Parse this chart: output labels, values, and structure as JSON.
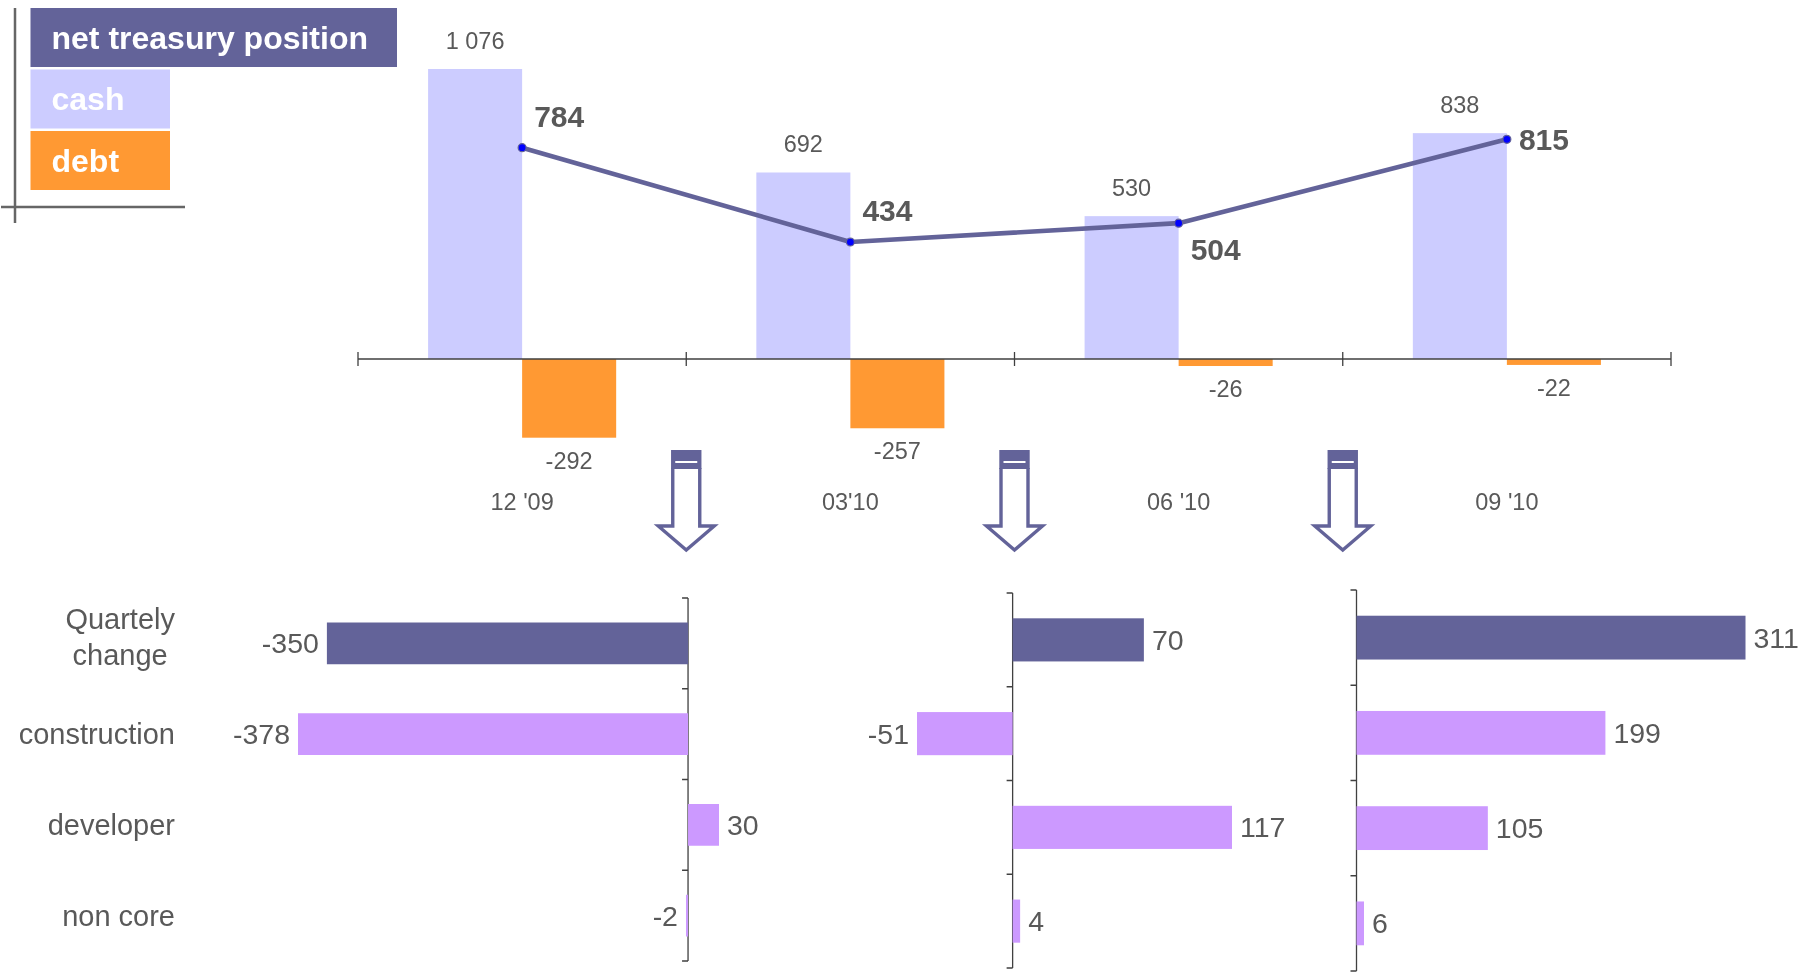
{
  "chart_data": [
    {
      "type": "bar",
      "categories": [
        "12 '09",
        "03'10",
        "06 '10",
        "09 '10"
      ],
      "series": [
        {
          "name": "net treasury position",
          "type": "line",
          "color": "#636399",
          "values": [
            784,
            434,
            504,
            815
          ]
        },
        {
          "name": "cash",
          "color": "#ccccff",
          "values": [
            1076,
            692,
            530,
            838
          ],
          "value_labels": [
            "1 076",
            "692",
            "530",
            "838"
          ]
        },
        {
          "name": "debt",
          "color": "#ff9933",
          "values": [
            -292,
            -257,
            -26,
            -22
          ]
        }
      ],
      "data_labels": true,
      "legend": "top left",
      "marker": "circle",
      "tick_labels": "x"
    },
    {
      "type": "bar",
      "orientation": "horizontal",
      "categories": [
        "Quartely change",
        "construction",
        "developer",
        "non core"
      ],
      "values": [
        -350,
        -378,
        30,
        -2
      ],
      "colors": [
        "#636399",
        "#cc99ff",
        "#cc99ff",
        "#cc99ff"
      ],
      "data_labels": true,
      "tick_labels": "y"
    },
    {
      "type": "bar",
      "orientation": "horizontal",
      "categories": [
        "Quartely change",
        "construction",
        "developer",
        "non core"
      ],
      "values": [
        70,
        -51,
        117,
        4
      ],
      "colors": [
        "#636399",
        "#cc99ff",
        "#cc99ff",
        "#cc99ff"
      ],
      "data_labels": true,
      "tick_labels": false
    },
    {
      "type": "bar",
      "orientation": "horizontal",
      "categories": [
        "Quartely change",
        "construction",
        "developer",
        "non core"
      ],
      "values": [
        311,
        199,
        105,
        6
      ],
      "colors": [
        "#636399",
        "#cc99ff",
        "#cc99ff",
        "#cc99ff"
      ],
      "data_labels": true,
      "tick_labels": false
    }
  ]
}
